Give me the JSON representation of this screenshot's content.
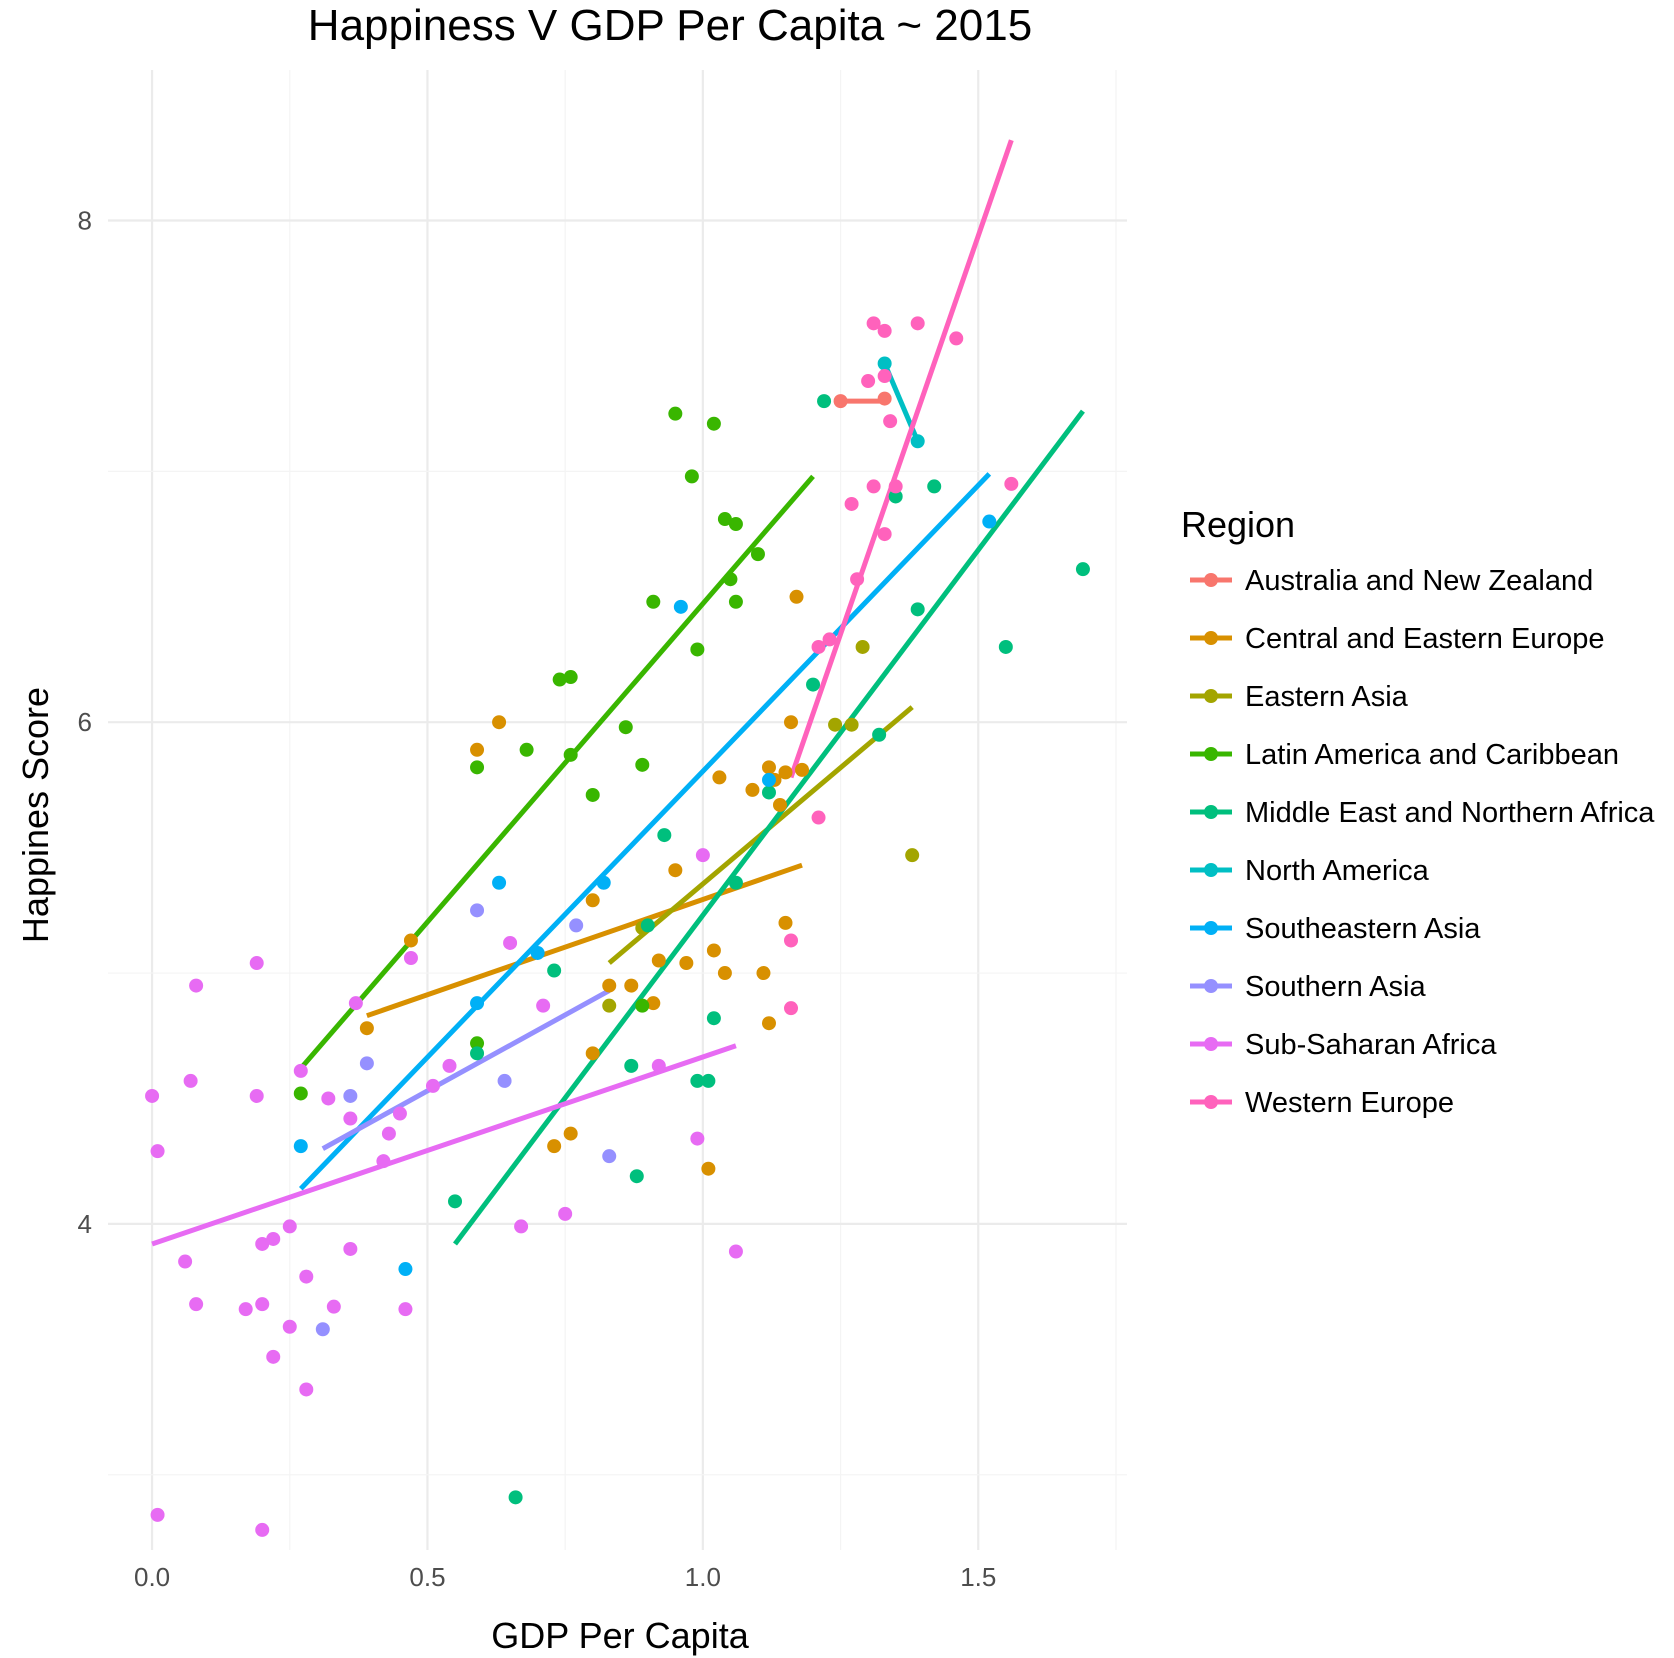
{
  "chart_data": {
    "type": "scatter",
    "title": "Happiness V GDP Per Capita ~ 2015",
    "xlabel": "GDP Per Capita",
    "ylabel": "Happines Score",
    "xlim": [
      -0.08,
      1.77
    ],
    "ylim": [
      2.7,
      8.6
    ],
    "xticks": [
      0.0,
      0.5,
      1.0,
      1.5
    ],
    "xtick_labels": [
      "0.0",
      "0.5",
      "1.0",
      "1.5"
    ],
    "yticks": [
      4,
      6,
      8
    ],
    "ytick_labels": [
      "4",
      "6",
      "8"
    ],
    "grid": true,
    "legend": {
      "title": "Region",
      "position": "right"
    },
    "series": [
      {
        "name": "Australia and New Zealand",
        "color": "#F8766D",
        "points": [
          [
            1.25,
            7.28
          ],
          [
            1.33,
            7.29
          ]
        ],
        "trend": [
          [
            1.25,
            7.28
          ],
          [
            1.33,
            7.28
          ]
        ]
      },
      {
        "name": "Central and Eastern Europe",
        "color": "#D89000",
        "points": [
          [
            0.39,
            4.78
          ],
          [
            0.47,
            5.13
          ],
          [
            0.59,
            5.89
          ],
          [
            0.63,
            6.0
          ],
          [
            0.8,
            5.29
          ],
          [
            0.8,
            4.68
          ],
          [
            0.83,
            4.95
          ],
          [
            0.87,
            4.95
          ],
          [
            0.91,
            4.88
          ],
          [
            0.92,
            5.05
          ],
          [
            0.95,
            5.41
          ],
          [
            0.97,
            5.04
          ],
          [
            1.02,
            5.09
          ],
          [
            1.03,
            5.78
          ],
          [
            1.04,
            5.0
          ],
          [
            1.09,
            5.73
          ],
          [
            1.11,
            5.0
          ],
          [
            1.12,
            5.82
          ],
          [
            1.12,
            4.8
          ],
          [
            1.13,
            5.77
          ],
          [
            1.14,
            5.67
          ],
          [
            1.15,
            5.8
          ],
          [
            1.15,
            5.2
          ],
          [
            1.16,
            6.0
          ],
          [
            1.17,
            6.5
          ],
          [
            1.18,
            5.81
          ],
          [
            0.73,
            4.31
          ],
          [
            0.76,
            4.36
          ],
          [
            1.01,
            4.22
          ]
        ],
        "trend": [
          [
            0.39,
            4.83
          ],
          [
            1.18,
            5.43
          ]
        ]
      },
      {
        "name": "Eastern Asia",
        "color": "#A3A500",
        "points": [
          [
            0.83,
            4.87
          ],
          [
            0.89,
            5.18
          ],
          [
            1.24,
            5.99
          ],
          [
            1.27,
            5.99
          ],
          [
            1.29,
            6.3
          ],
          [
            1.38,
            5.47
          ]
        ],
        "trend": [
          [
            0.83,
            5.04
          ],
          [
            1.38,
            6.06
          ]
        ]
      },
      {
        "name": "Latin America and Caribbean",
        "color": "#39B600",
        "points": [
          [
            0.27,
            4.52
          ],
          [
            0.59,
            5.82
          ],
          [
            0.59,
            4.72
          ],
          [
            0.68,
            5.89
          ],
          [
            0.74,
            6.17
          ],
          [
            0.76,
            6.18
          ],
          [
            0.76,
            5.87
          ],
          [
            0.8,
            5.71
          ],
          [
            0.86,
            5.98
          ],
          [
            0.89,
            5.83
          ],
          [
            0.89,
            4.87
          ],
          [
            0.95,
            7.23
          ],
          [
            0.98,
            6.98
          ],
          [
            0.99,
            6.29
          ],
          [
            1.02,
            7.19
          ],
          [
            1.04,
            6.81
          ],
          [
            1.05,
            6.57
          ],
          [
            1.06,
            6.48
          ],
          [
            1.06,
            6.79
          ],
          [
            1.1,
            6.67
          ],
          [
            0.91,
            6.48
          ]
        ],
        "trend": [
          [
            0.27,
            4.62
          ],
          [
            1.2,
            6.98
          ]
        ]
      },
      {
        "name": "Middle East and Northern Africa",
        "color": "#00BF7D",
        "points": [
          [
            0.55,
            4.09
          ],
          [
            0.59,
            4.68
          ],
          [
            0.66,
            2.91
          ],
          [
            0.73,
            5.01
          ],
          [
            0.87,
            4.63
          ],
          [
            0.88,
            4.19
          ],
          [
            0.9,
            5.19
          ],
          [
            0.93,
            5.55
          ],
          [
            0.99,
            4.57
          ],
          [
            1.01,
            4.57
          ],
          [
            1.02,
            4.82
          ],
          [
            1.06,
            5.36
          ],
          [
            1.12,
            5.72
          ],
          [
            1.2,
            6.15
          ],
          [
            1.22,
            7.28
          ],
          [
            1.32,
            5.95
          ],
          [
            1.35,
            6.9
          ],
          [
            1.39,
            6.45
          ],
          [
            1.42,
            6.94
          ],
          [
            1.55,
            6.3
          ],
          [
            1.69,
            6.61
          ]
        ],
        "trend": [
          [
            0.55,
            3.92
          ],
          [
            1.69,
            7.24
          ]
        ]
      },
      {
        "name": "North America",
        "color": "#00BFC4",
        "points": [
          [
            1.33,
            7.43
          ],
          [
            1.39,
            7.12
          ]
        ],
        "trend": [
          [
            1.33,
            7.43
          ],
          [
            1.39,
            7.12
          ]
        ]
      },
      {
        "name": "Southeastern Asia",
        "color": "#00B0F6",
        "points": [
          [
            0.27,
            4.31
          ],
          [
            0.46,
            3.82
          ],
          [
            0.59,
            4.88
          ],
          [
            0.63,
            5.36
          ],
          [
            0.7,
            5.08
          ],
          [
            0.82,
            5.36
          ],
          [
            0.96,
            6.46
          ],
          [
            1.12,
            5.77
          ],
          [
            1.52,
            6.8
          ]
        ],
        "trend": [
          [
            0.27,
            4.14
          ],
          [
            1.52,
            6.99
          ]
        ]
      },
      {
        "name": "Southern Asia",
        "color": "#9590FF",
        "points": [
          [
            0.31,
            3.58
          ],
          [
            0.36,
            4.51
          ],
          [
            0.39,
            4.64
          ],
          [
            0.59,
            5.25
          ],
          [
            0.64,
            4.57
          ],
          [
            0.77,
            5.19
          ],
          [
            0.83,
            4.27
          ]
        ],
        "trend": [
          [
            0.31,
            4.3
          ],
          [
            0.83,
            4.93
          ]
        ]
      },
      {
        "name": "Sub-Saharan Africa",
        "color": "#E76BF3",
        "points": [
          [
            0.0,
            4.51
          ],
          [
            0.01,
            4.29
          ],
          [
            0.01,
            2.84
          ],
          [
            0.06,
            3.85
          ],
          [
            0.07,
            4.57
          ],
          [
            0.08,
            3.68
          ],
          [
            0.08,
            4.95
          ],
          [
            0.17,
            3.66
          ],
          [
            0.19,
            5.04
          ],
          [
            0.19,
            4.51
          ],
          [
            0.2,
            3.92
          ],
          [
            0.2,
            3.68
          ],
          [
            0.2,
            2.78
          ],
          [
            0.22,
            3.94
          ],
          [
            0.22,
            3.47
          ],
          [
            0.25,
            3.99
          ],
          [
            0.25,
            3.59
          ],
          [
            0.27,
            4.61
          ],
          [
            0.28,
            3.34
          ],
          [
            0.28,
            3.79
          ],
          [
            0.32,
            4.5
          ],
          [
            0.33,
            3.67
          ],
          [
            0.36,
            4.42
          ],
          [
            0.36,
            3.9
          ],
          [
            0.37,
            4.88
          ],
          [
            0.42,
            4.25
          ],
          [
            0.43,
            4.36
          ],
          [
            0.45,
            4.44
          ],
          [
            0.46,
            3.66
          ],
          [
            0.47,
            5.06
          ],
          [
            0.51,
            4.55
          ],
          [
            0.54,
            4.63
          ],
          [
            0.65,
            5.12
          ],
          [
            0.67,
            3.99
          ],
          [
            0.71,
            4.87
          ],
          [
            0.75,
            4.04
          ],
          [
            0.92,
            4.63
          ],
          [
            0.99,
            4.34
          ],
          [
            1.0,
            5.47
          ],
          [
            1.06,
            3.89
          ]
        ],
        "trend": [
          [
            0.0,
            3.92
          ],
          [
            1.06,
            4.71
          ]
        ]
      },
      {
        "name": "Western Europe",
        "color": "#FF62BC",
        "points": [
          [
            1.16,
            5.13
          ],
          [
            1.16,
            4.86
          ],
          [
            1.21,
            5.62
          ],
          [
            1.21,
            6.3
          ],
          [
            1.23,
            6.33
          ],
          [
            1.27,
            6.87
          ],
          [
            1.28,
            6.57
          ],
          [
            1.3,
            7.36
          ],
          [
            1.31,
            6.94
          ],
          [
            1.31,
            7.59
          ],
          [
            1.33,
            7.56
          ],
          [
            1.33,
            6.75
          ],
          [
            1.33,
            7.38
          ],
          [
            1.34,
            7.2
          ],
          [
            1.35,
            6.94
          ],
          [
            1.39,
            7.59
          ],
          [
            1.46,
            7.53
          ],
          [
            1.56,
            6.95
          ]
        ],
        "trend": [
          [
            1.16,
            5.78
          ],
          [
            1.56,
            8.32
          ]
        ]
      }
    ]
  }
}
